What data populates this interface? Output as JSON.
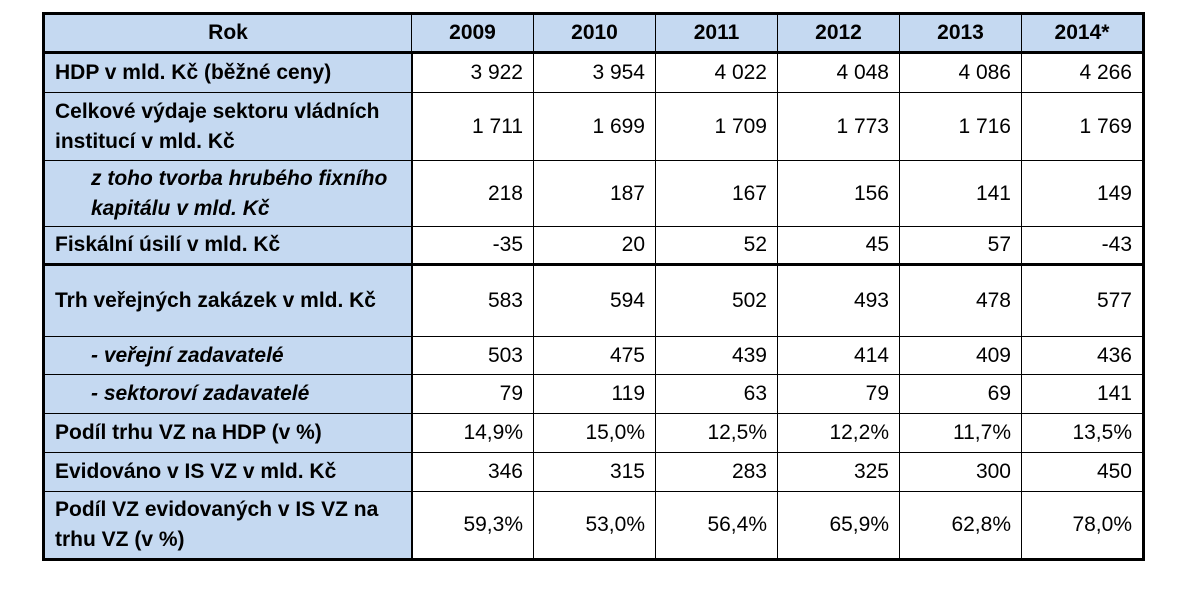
{
  "header": {
    "label": "Rok",
    "years": [
      "2009",
      "2010",
      "2011",
      "2012",
      "2013",
      "2014*"
    ]
  },
  "rows": [
    {
      "label": "HDP v mld. Kč (běžné ceny)",
      "values": [
        "3 922",
        "3 954",
        "4 022",
        "4 048",
        "4 086",
        "4 266"
      ]
    },
    {
      "label": "Celkové výdaje sektoru vládních institucí v mld. Kč",
      "values": [
        "1 711",
        "1 699",
        "1 709",
        "1 773",
        "1 716",
        "1 769"
      ]
    },
    {
      "label": "z toho tvorba hrubého fixního kapitálu v mld. Kč",
      "values": [
        "218",
        "187",
        "167",
        "156",
        "141",
        "149"
      ]
    },
    {
      "label": "Fiskální úsilí v mld. Kč",
      "values": [
        "-35",
        "20",
        "52",
        "45",
        "57",
        "-43"
      ]
    },
    {
      "label": "Trh veřejných zakázek v mld. Kč",
      "values": [
        "583",
        "594",
        "502",
        "493",
        "478",
        "577"
      ]
    },
    {
      "label": "- veřejní zadavatelé",
      "values": [
        "503",
        "475",
        "439",
        "414",
        "409",
        "436"
      ]
    },
    {
      "label": "- sektoroví zadavatelé",
      "values": [
        "79",
        "119",
        "63",
        "79",
        "69",
        "141"
      ]
    },
    {
      "label": "Podíl trhu VZ na HDP (v %)",
      "values": [
        "14,9%",
        "15,0%",
        "12,5%",
        "12,2%",
        "11,7%",
        "13,5%"
      ]
    },
    {
      "label": "Evidováno v IS VZ v mld. Kč",
      "values": [
        "346",
        "315",
        "283",
        "325",
        "300",
        "450"
      ]
    },
    {
      "label": "Podíl VZ evidovaných v IS VZ na trhu VZ (v %)",
      "values": [
        "59,3%",
        "53,0%",
        "56,4%",
        "65,9%",
        "62,8%",
        "78,0%"
      ]
    }
  ]
}
